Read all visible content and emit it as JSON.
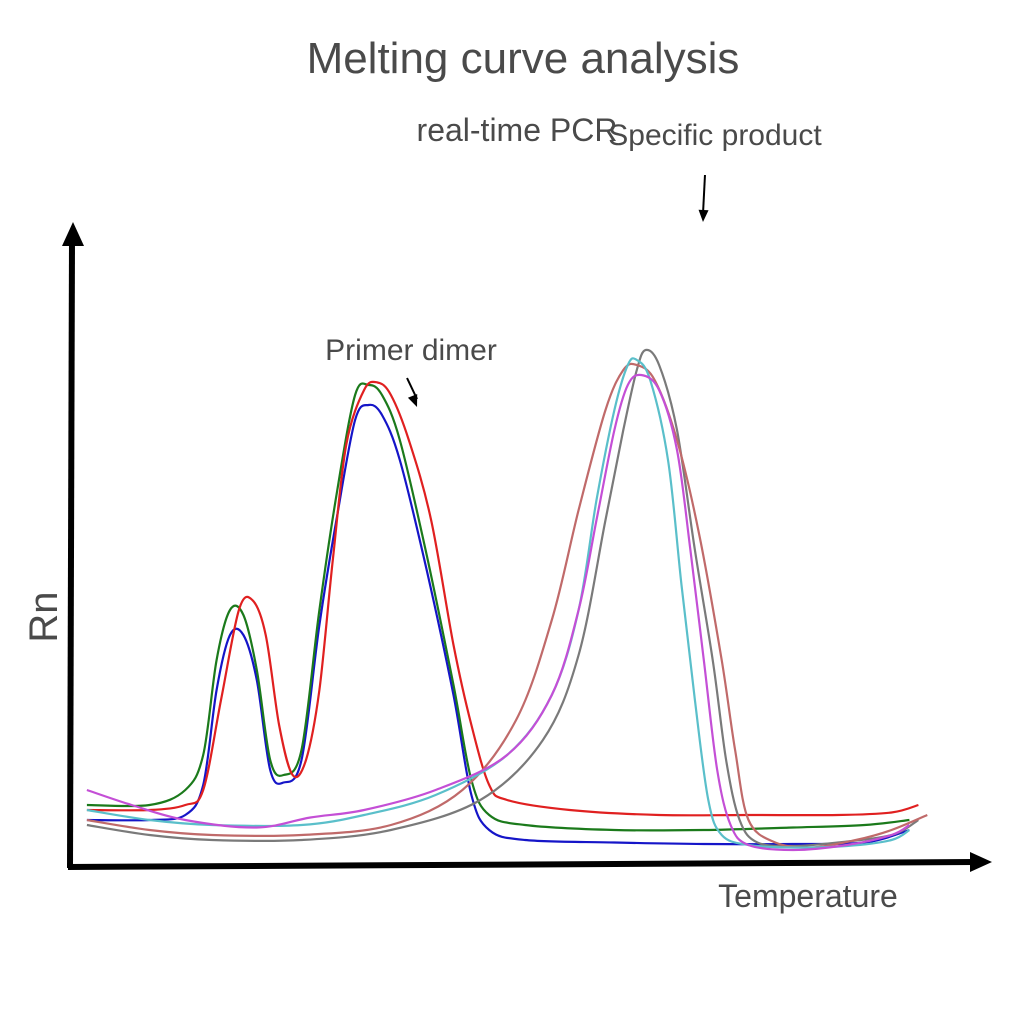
{
  "chart_data": {
    "type": "line",
    "title": "Melting curve analysis",
    "subtitle": "real-time PCR",
    "xlabel": "Temperature",
    "ylabel": "Rn",
    "xlim": [
      0,
      100
    ],
    "ylim": [
      0,
      100
    ],
    "grid": false,
    "show_ticks": false,
    "annotations": [
      {
        "text": "Primer dimer",
        "x": 33,
        "y": 100,
        "arrow_to": {
          "x": 33,
          "y": 89
        }
      },
      {
        "text": "Specific product",
        "x": 67,
        "y": 143,
        "arrow_to": {
          "x": 67,
          "y": 126
        }
      }
    ],
    "series": [
      {
        "color": "#1515c8",
        "points": [
          [
            1,
            8
          ],
          [
            8,
            8
          ],
          [
            12,
            9
          ],
          [
            14,
            15
          ],
          [
            15.5,
            34
          ],
          [
            17,
            45
          ],
          [
            18.5,
            45
          ],
          [
            20,
            36
          ],
          [
            21.5,
            18
          ],
          [
            23,
            15.5
          ],
          [
            25,
            20
          ],
          [
            27,
            47
          ],
          [
            29,
            69
          ],
          [
            31,
            88
          ],
          [
            32.5,
            91
          ],
          [
            34,
            89
          ],
          [
            36,
            80
          ],
          [
            39,
            58
          ],
          [
            42,
            33
          ],
          [
            44,
            13
          ],
          [
            46,
            6
          ],
          [
            50,
            4
          ],
          [
            60,
            3.5
          ],
          [
            70,
            3.2
          ],
          [
            80,
            3.2
          ],
          [
            88,
            3.5
          ],
          [
            93,
            6
          ]
        ]
      },
      {
        "color": "#1b7a1b",
        "points": [
          [
            1,
            11
          ],
          [
            8,
            11
          ],
          [
            12,
            14
          ],
          [
            14,
            21
          ],
          [
            15.5,
            40
          ],
          [
            17,
            50
          ],
          [
            18.5,
            49
          ],
          [
            20,
            38
          ],
          [
            21.5,
            20
          ],
          [
            23,
            17
          ],
          [
            25,
            22
          ],
          [
            27,
            50
          ],
          [
            29,
            74
          ],
          [
            31,
            93
          ],
          [
            32.5,
            95
          ],
          [
            34,
            93
          ],
          [
            36,
            84
          ],
          [
            39,
            61
          ],
          [
            42,
            35
          ],
          [
            44,
            16
          ],
          [
            46,
            9
          ],
          [
            50,
            7
          ],
          [
            60,
            6
          ],
          [
            70,
            6
          ],
          [
            80,
            6.5
          ],
          [
            88,
            7
          ],
          [
            93,
            8
          ]
        ]
      },
      {
        "color": "#e02020",
        "points": [
          [
            1,
            10
          ],
          [
            8,
            10
          ],
          [
            12,
            11
          ],
          [
            14,
            14
          ],
          [
            16,
            32
          ],
          [
            18,
            50
          ],
          [
            19.5,
            52
          ],
          [
            21,
            45
          ],
          [
            22.5,
            27
          ],
          [
            24,
            17
          ],
          [
            25.5,
            20
          ],
          [
            27,
            34
          ],
          [
            28.5,
            60
          ],
          [
            30,
            83
          ],
          [
            32,
            94
          ],
          [
            33.5,
            95.5
          ],
          [
            35,
            93
          ],
          [
            37,
            84
          ],
          [
            39.5,
            68
          ],
          [
            42,
            43
          ],
          [
            44,
            27
          ],
          [
            46,
            15
          ],
          [
            48,
            12
          ],
          [
            55,
            10
          ],
          [
            65,
            9
          ],
          [
            75,
            9
          ],
          [
            85,
            9
          ],
          [
            91,
            9.5
          ],
          [
            94,
            11
          ]
        ]
      },
      {
        "color": "#7a7a7a",
        "points": [
          [
            1,
            7
          ],
          [
            8,
            5
          ],
          [
            15,
            4
          ],
          [
            25,
            4
          ],
          [
            35,
            6
          ],
          [
            45,
            12
          ],
          [
            52,
            24
          ],
          [
            56,
            41
          ],
          [
            59,
            68
          ],
          [
            61,
            86
          ],
          [
            62.5,
            98
          ],
          [
            63.5,
            102
          ],
          [
            65,
            99
          ],
          [
            67,
            86
          ],
          [
            69,
            62
          ],
          [
            71,
            40
          ],
          [
            72.5,
            20
          ],
          [
            74,
            8
          ],
          [
            76,
            3.5
          ],
          [
            80,
            2.8
          ],
          [
            85,
            3.5
          ],
          [
            91,
            5
          ],
          [
            94,
            8
          ]
        ]
      },
      {
        "color": "#c06a6a",
        "points": [
          [
            1,
            8
          ],
          [
            8,
            6
          ],
          [
            15,
            5
          ],
          [
            25,
            5
          ],
          [
            35,
            7
          ],
          [
            43,
            14
          ],
          [
            49,
            28
          ],
          [
            53,
            48
          ],
          [
            56,
            70
          ],
          [
            59,
            90
          ],
          [
            61,
            98
          ],
          [
            62.5,
            99
          ],
          [
            64.5,
            96
          ],
          [
            67,
            84
          ],
          [
            69.5,
            65
          ],
          [
            72,
            40
          ],
          [
            73.5,
            22
          ],
          [
            75,
            8
          ],
          [
            78,
            3.5
          ],
          [
            82,
            2.5
          ],
          [
            87,
            4
          ],
          [
            91,
            6
          ],
          [
            95,
            9
          ]
        ]
      },
      {
        "color": "#5abfca",
        "points": [
          [
            1,
            10
          ],
          [
            8,
            8
          ],
          [
            15,
            7
          ],
          [
            25,
            7
          ],
          [
            32,
            9
          ],
          [
            40,
            13
          ],
          [
            48,
            21
          ],
          [
            53,
            33
          ],
          [
            56,
            50
          ],
          [
            58,
            72
          ],
          [
            60,
            90
          ],
          [
            61.5,
            99
          ],
          [
            62.5,
            100
          ],
          [
            64,
            96
          ],
          [
            66,
            80
          ],
          [
            67.5,
            55
          ],
          [
            69,
            32
          ],
          [
            70.5,
            12
          ],
          [
            72,
            5
          ],
          [
            75,
            3
          ],
          [
            80,
            2.5
          ],
          [
            86,
            2.8
          ],
          [
            91,
            4
          ],
          [
            93,
            6
          ]
        ]
      },
      {
        "color": "#c44fd6",
        "points": [
          [
            1,
            14
          ],
          [
            6,
            11
          ],
          [
            12,
            8
          ],
          [
            20,
            6.5
          ],
          [
            26,
            8.5
          ],
          [
            32,
            10
          ],
          [
            40,
            14
          ],
          [
            48,
            21
          ],
          [
            53,
            33
          ],
          [
            56,
            50
          ],
          [
            58,
            68
          ],
          [
            60,
            86
          ],
          [
            61.5,
            95
          ],
          [
            63,
            97
          ],
          [
            65,
            94
          ],
          [
            67,
            82
          ],
          [
            68.5,
            62
          ],
          [
            70,
            40
          ],
          [
            71.5,
            18
          ],
          [
            73,
            7
          ],
          [
            75,
            3
          ],
          [
            80,
            2
          ],
          [
            86,
            3
          ],
          [
            91,
            5
          ],
          [
            93,
            7
          ]
        ]
      }
    ]
  }
}
